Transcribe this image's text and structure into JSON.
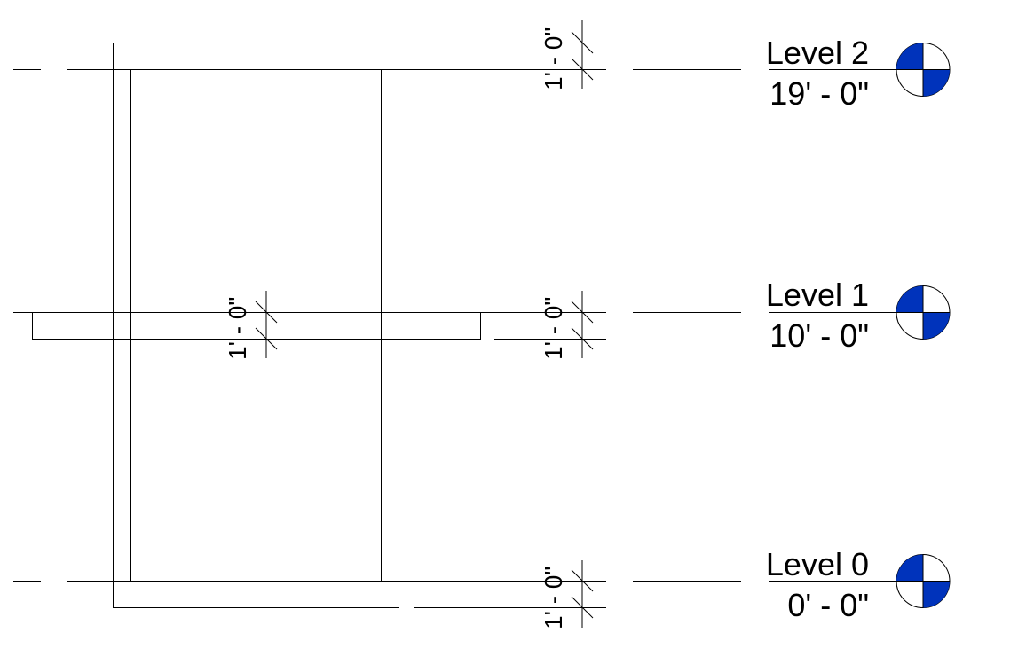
{
  "levels": [
    {
      "name": "Level 2",
      "elevation": "19' - 0\""
    },
    {
      "name": "Level 1",
      "elevation": "10' - 0\""
    },
    {
      "name": "Level 0",
      "elevation": "0' - 0\""
    }
  ],
  "dimensions": {
    "level2_right": "1' - 0\"",
    "level1_right": "1' - 0\"",
    "level1_center": "1' - 0\"",
    "level0_right": "1' - 0\""
  },
  "colors": {
    "level_head_fill": "#0033bb",
    "line": "#000000"
  },
  "icons": {
    "level_head": "level-head-icon"
  }
}
